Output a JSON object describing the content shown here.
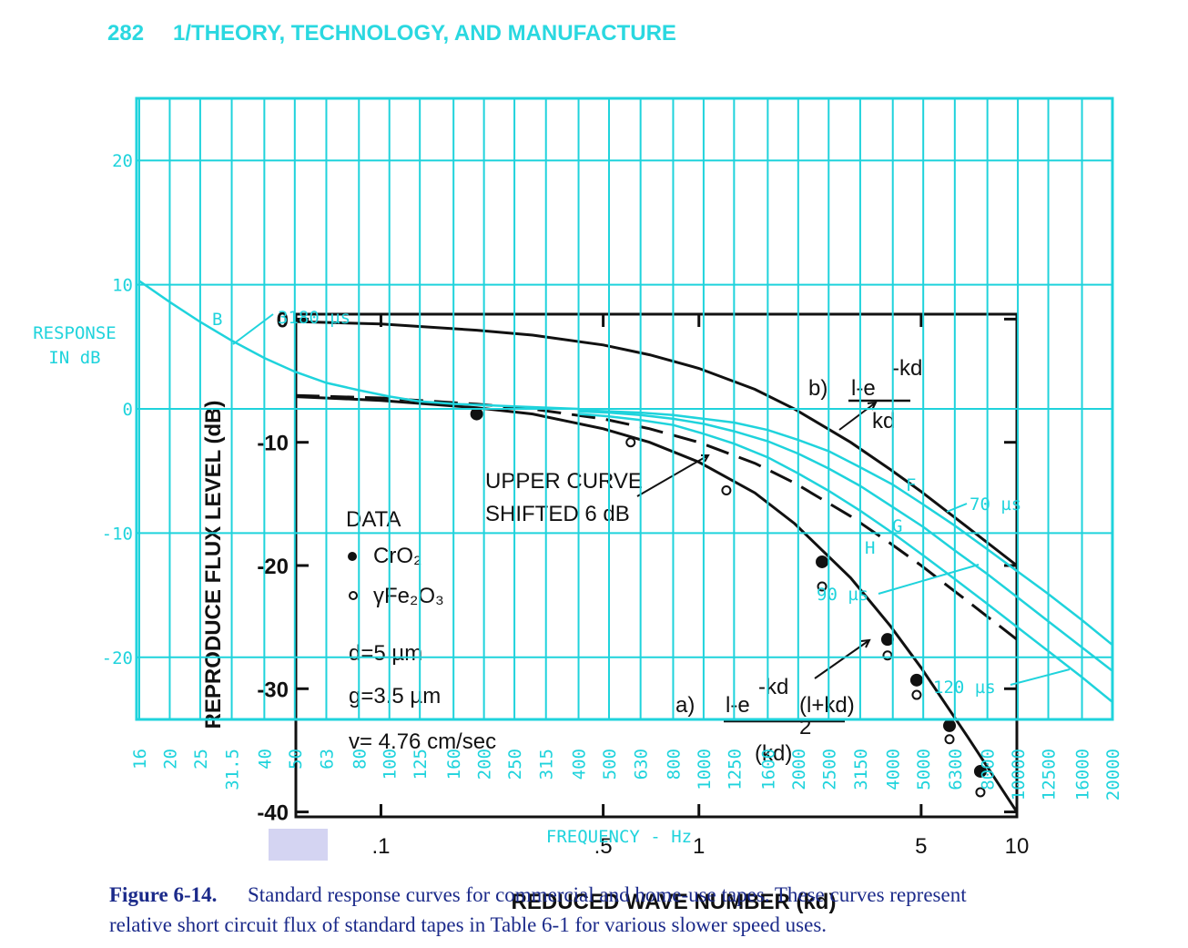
{
  "header": {
    "page": "282",
    "title": "1/THEORY, TECHNOLOGY, AND MANUFACTURE"
  },
  "caption": {
    "label": "Figure 6-14.",
    "lines": [
      "Standard response curves for commercial and home-use tapes. These curves represent",
      "relative short circuit flux of standard tapes in Table 6-1 for various slower speed uses."
    ]
  },
  "chart_data": [
    {
      "type": "line",
      "color": "#1fd3dc",
      "xlabel": "FREQUENCY - Hz",
      "ylabel": [
        "RESPONSE",
        "IN dB"
      ],
      "xscale": "log",
      "xlim": [
        16,
        20000
      ],
      "ylim": [
        -25,
        25
      ],
      "xticks": [
        16,
        20,
        25,
        31.5,
        40,
        50,
        63,
        80,
        100,
        125,
        160,
        200,
        250,
        315,
        400,
        500,
        630,
        800,
        1000,
        1250,
        1600,
        2000,
        2500,
        3150,
        4000,
        5000,
        6300,
        8000,
        10000,
        12500,
        16000,
        20000
      ],
      "yticks": [
        -20,
        -10,
        0,
        10,
        20
      ],
      "grid": true,
      "x": [
        16,
        20,
        25,
        31.5,
        40,
        50,
        63,
        80,
        100,
        125,
        160,
        200,
        250,
        315,
        400,
        500,
        630,
        800,
        1000,
        1250,
        1600,
        2000,
        2500,
        3150,
        4000,
        5000,
        6300,
        8000,
        10000,
        12500,
        16000,
        20000
      ],
      "series": [
        {
          "name": "3180 µs",
          "values": [
            10.3,
            8.6,
            7.0,
            5.5,
            4.1,
            3.0,
            2.1,
            1.5,
            1.0,
            0.6,
            0.4,
            0.3,
            0.2,
            0.1,
            0.0,
            null,
            null,
            null,
            null,
            null,
            null,
            null,
            null,
            null,
            null,
            null,
            null,
            null,
            null,
            null,
            null,
            null
          ]
        },
        {
          "name": "70 µs",
          "values": [
            null,
            null,
            null,
            null,
            null,
            null,
            null,
            null,
            null,
            null,
            null,
            null,
            null,
            null,
            -0.1,
            -0.2,
            -0.3,
            -0.5,
            -0.8,
            -1.1,
            -1.7,
            -2.5,
            -3.4,
            -4.7,
            -6.1,
            -7.7,
            -9.4,
            -11.3,
            -13.1,
            -14.9,
            -17.0,
            -19.0
          ]
        },
        {
          "name": "90 µs",
          "values": [
            null,
            null,
            null,
            null,
            null,
            null,
            null,
            null,
            null,
            null,
            null,
            null,
            null,
            null,
            -0.2,
            -0.3,
            -0.5,
            -0.8,
            -1.2,
            -1.8,
            -2.6,
            -3.6,
            -4.8,
            -6.2,
            -7.9,
            -9.5,
            -11.4,
            -13.3,
            -15.2,
            -17.1,
            -19.2,
            -21.1
          ]
        },
        {
          "name": "120 µs",
          "values": [
            null,
            null,
            null,
            null,
            null,
            null,
            null,
            null,
            null,
            null,
            null,
            null,
            null,
            null,
            -0.4,
            -0.6,
            -0.9,
            -1.3,
            -2.0,
            -2.8,
            -3.9,
            -5.2,
            -6.6,
            -8.2,
            -10.0,
            -11.8,
            -13.7,
            -15.7,
            -17.6,
            -19.5,
            -21.6,
            -23.6
          ]
        }
      ],
      "annotations": [
        "B",
        "F",
        "G",
        "H"
      ]
    },
    {
      "type": "line",
      "color": "#111111",
      "xlabel": "REDUCED WAVE NUMBER (kd)",
      "ylabel": "REPRODUCE FLUX LEVEL (dB)",
      "xscale": "log",
      "xlim": [
        0.054,
        10
      ],
      "ylim": [
        -40.4,
        0.4
      ],
      "xticks": [
        {
          "value": 0.1,
          "label": ".1"
        },
        {
          "value": 0.5,
          "label": ".5"
        },
        1,
        5,
        10
      ],
      "yticks": [
        0,
        -10,
        -20,
        -30,
        -40
      ],
      "x": [
        0.054,
        0.1,
        0.2,
        0.3,
        0.5,
        0.7,
        1,
        1.5,
        2,
        3,
        4,
        5,
        7,
        10
      ],
      "series": [
        {
          "name": "b)",
          "values": [
            -0.2,
            -0.4,
            -0.9,
            -1.3,
            -2.1,
            -2.9,
            -4.0,
            -5.7,
            -7.3,
            -10.0,
            -12.2,
            -14.0,
            -16.9,
            -20.0
          ]
        },
        {
          "dashed": true,
          "values": [
            -6.2,
            -6.4,
            -6.9,
            -7.3,
            -8.1,
            -8.9,
            -10.0,
            -11.7,
            -13.3,
            -16.0,
            -18.2,
            -20.0,
            -22.9,
            -26.0
          ]
        },
        {
          "name": "a)",
          "values": [
            -6.3,
            -6.6,
            -7.2,
            -7.7,
            -8.9,
            -10.0,
            -11.6,
            -14.1,
            -16.6,
            -21.0,
            -24.9,
            -28.3,
            -33.9,
            -40.0
          ]
        },
        {
          "name": "CrO₂",
          "type": "scatter",
          "marker": "filled",
          "x": [
            0.2,
            2.44,
            3.92,
            4.84,
            6.14,
            7.68
          ],
          "values": [
            -7.7,
            -19.7,
            -26.0,
            -29.3,
            -33.0,
            -36.7
          ]
        },
        {
          "name": "γFe₂O₃",
          "type": "scatter",
          "marker": "open",
          "x": [
            0.61,
            1.22,
            2.44,
            3.92,
            4.84,
            6.14,
            7.68
          ],
          "values": [
            -10.0,
            -13.9,
            -21.7,
            -27.3,
            -30.5,
            -34.1,
            -38.4
          ]
        }
      ],
      "annotations": [
        "l-e",
        "-kd",
        "kd",
        "l-e",
        "-kd",
        "(l+kd)",
        "(kd)",
        "2",
        "UPPER CURVE",
        "SHIFTED 6 dB",
        "DATA",
        "d=5 µm",
        "g=3.5 µm",
        "v= 4.76 cm/sec"
      ]
    }
  ]
}
